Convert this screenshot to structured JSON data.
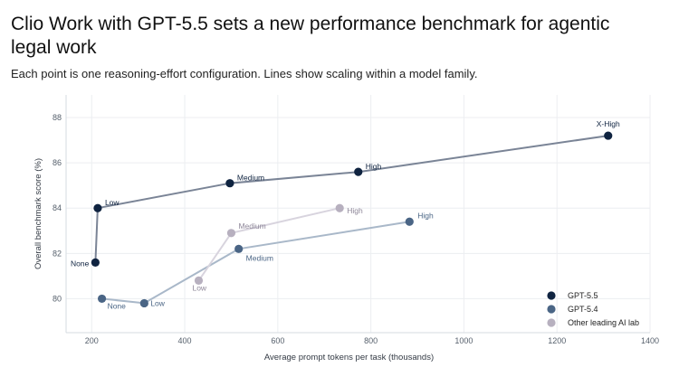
{
  "page": {
    "title": "Clio Work with GPT-5.5 sets a new performance benchmark for agentic legal work",
    "subtitle": "Each point is one reasoning-effort configuration. Lines show scaling within a model family."
  },
  "chart_data": {
    "type": "scatter",
    "title": "Clio Work with GPT-5.5 sets a new performance benchmark for agentic legal work",
    "subtitle": "Each point is one reasoning-effort configuration. Lines show scaling within a model family.",
    "xlabel": "Average prompt tokens per task (thousands)",
    "ylabel": "Overall benchmark score (%)",
    "xlim": [
      145,
      1400
    ],
    "ylim": [
      78.5,
      89
    ],
    "xticks": [
      200,
      400,
      600,
      800,
      1000,
      1200,
      1400
    ],
    "yticks": [
      80,
      82,
      84,
      86,
      88
    ],
    "grid": true,
    "legend_position": "bottom-right",
    "series": [
      {
        "name": "GPT-5.5",
        "color": "#0f2340",
        "line_color": "#7a8496",
        "points": [
          {
            "label": "None",
            "x": 208,
            "y": 81.6
          },
          {
            "label": "Low",
            "x": 213,
            "y": 84.0
          },
          {
            "label": "Medium",
            "x": 497,
            "y": 85.1
          },
          {
            "label": "High",
            "x": 773,
            "y": 85.6
          },
          {
            "label": "X-High",
            "x": 1310,
            "y": 87.2
          }
        ]
      },
      {
        "name": "GPT-5.4",
        "color": "#4a6585",
        "line_color": "#a9b8c9",
        "points": [
          {
            "label": "None",
            "x": 222,
            "y": 80.0
          },
          {
            "label": "Low",
            "x": 313,
            "y": 79.8
          },
          {
            "label": "Medium",
            "x": 516,
            "y": 82.2
          },
          {
            "label": "High",
            "x": 883,
            "y": 83.4
          }
        ]
      },
      {
        "name": "Other leading AI lab",
        "color": "#b7b0bf",
        "line_color": "#d8d4de",
        "points": [
          {
            "label": "Low",
            "x": 430,
            "y": 80.8
          },
          {
            "label": "Medium",
            "x": 500,
            "y": 82.9
          },
          {
            "label": "High",
            "x": 733,
            "y": 84.0
          }
        ]
      }
    ]
  }
}
